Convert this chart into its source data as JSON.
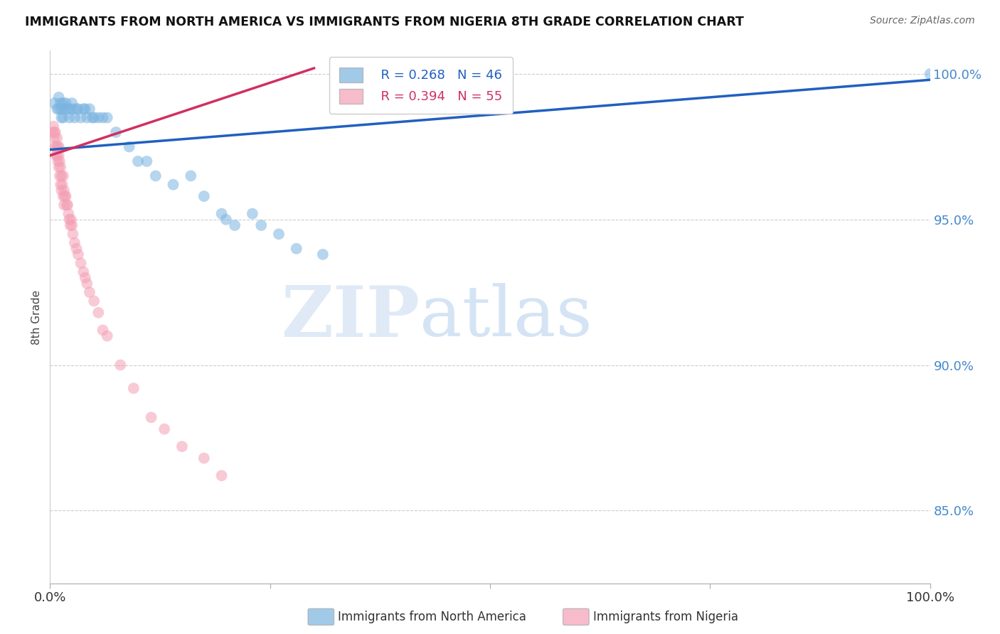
{
  "title": "IMMIGRANTS FROM NORTH AMERICA VS IMMIGRANTS FROM NIGERIA 8TH GRADE CORRELATION CHART",
  "source_text": "Source: ZipAtlas.com",
  "ylabel": "8th Grade",
  "y_tick_labels": [
    "85.0%",
    "90.0%",
    "95.0%",
    "100.0%"
  ],
  "y_tick_values": [
    0.85,
    0.9,
    0.95,
    1.0
  ],
  "x_lim": [
    0.0,
    1.0
  ],
  "y_lim": [
    0.825,
    1.008
  ],
  "legend_blue_r": "R = 0.268",
  "legend_blue_n": "N = 46",
  "legend_pink_r": "R = 0.394",
  "legend_pink_n": "N = 55",
  "blue_color": "#7ab4e0",
  "pink_color": "#f4a0b5",
  "line_blue_color": "#2060c0",
  "line_pink_color": "#d03060",
  "watermark_zip": "ZIP",
  "watermark_atlas": "atlas",
  "blue_x": [
    0.005,
    0.008,
    0.01,
    0.01,
    0.012,
    0.013,
    0.013,
    0.015,
    0.015,
    0.016,
    0.018,
    0.02,
    0.022,
    0.022,
    0.025,
    0.026,
    0.028,
    0.03,
    0.032,
    0.035,
    0.038,
    0.04,
    0.042,
    0.045,
    0.048,
    0.05,
    0.055,
    0.06,
    0.065,
    0.075,
    0.09,
    0.1,
    0.11,
    0.12,
    0.14,
    0.16,
    0.175,
    0.195,
    0.2,
    0.21,
    0.23,
    0.24,
    0.26,
    0.28,
    0.31,
    1.0
  ],
  "blue_y": [
    0.99,
    0.988,
    0.992,
    0.988,
    0.99,
    0.988,
    0.985,
    0.99,
    0.985,
    0.988,
    0.99,
    0.988,
    0.988,
    0.985,
    0.99,
    0.988,
    0.985,
    0.988,
    0.988,
    0.985,
    0.988,
    0.988,
    0.985,
    0.988,
    0.985,
    0.985,
    0.985,
    0.985,
    0.985,
    0.98,
    0.975,
    0.97,
    0.97,
    0.965,
    0.962,
    0.965,
    0.958,
    0.952,
    0.95,
    0.948,
    0.952,
    0.948,
    0.945,
    0.94,
    0.938,
    1.0
  ],
  "pink_x": [
    0.003,
    0.004,
    0.005,
    0.005,
    0.006,
    0.006,
    0.007,
    0.007,
    0.008,
    0.008,
    0.009,
    0.009,
    0.01,
    0.01,
    0.01,
    0.011,
    0.011,
    0.012,
    0.012,
    0.013,
    0.013,
    0.014,
    0.015,
    0.015,
    0.016,
    0.016,
    0.017,
    0.018,
    0.019,
    0.02,
    0.021,
    0.022,
    0.023,
    0.024,
    0.025,
    0.026,
    0.028,
    0.03,
    0.032,
    0.035,
    0.038,
    0.04,
    0.042,
    0.045,
    0.05,
    0.055,
    0.06,
    0.065,
    0.08,
    0.095,
    0.115,
    0.13,
    0.15,
    0.175,
    0.195
  ],
  "pink_y": [
    0.98,
    0.982,
    0.98,
    0.978,
    0.98,
    0.975,
    0.975,
    0.972,
    0.978,
    0.972,
    0.975,
    0.97,
    0.975,
    0.972,
    0.968,
    0.97,
    0.965,
    0.968,
    0.962,
    0.965,
    0.96,
    0.962,
    0.965,
    0.958,
    0.96,
    0.955,
    0.958,
    0.958,
    0.955,
    0.955,
    0.952,
    0.95,
    0.948,
    0.95,
    0.948,
    0.945,
    0.942,
    0.94,
    0.938,
    0.935,
    0.932,
    0.93,
    0.928,
    0.925,
    0.922,
    0.918,
    0.912,
    0.91,
    0.9,
    0.892,
    0.882,
    0.878,
    0.872,
    0.868,
    0.862
  ],
  "blue_line_x0": 0.0,
  "blue_line_y0": 0.974,
  "blue_line_x1": 1.0,
  "blue_line_y1": 0.998,
  "pink_line_x0": 0.0,
  "pink_line_y0": 0.972,
  "pink_line_x1": 0.3,
  "pink_line_y1": 1.002
}
